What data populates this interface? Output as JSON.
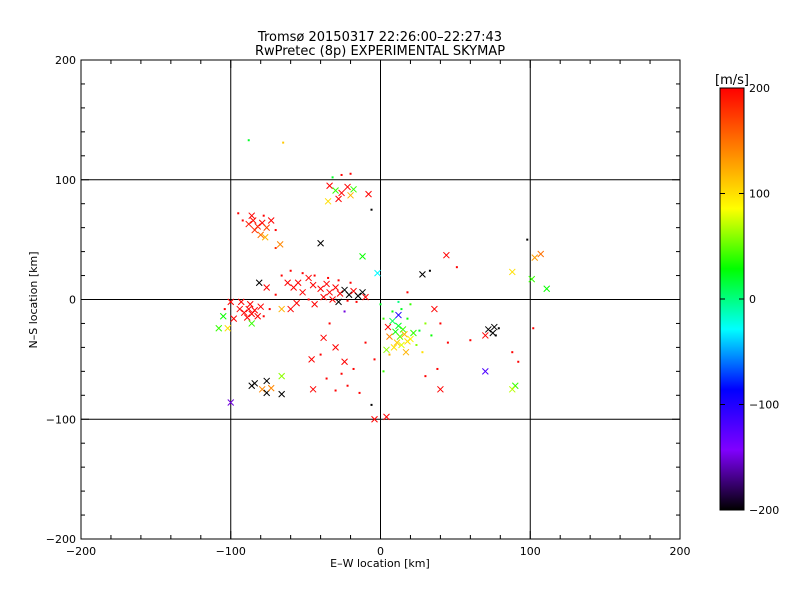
{
  "chart_data": {
    "type": "scatter",
    "title": "Tromsø 20150317 22:26:00–22:27:43",
    "subtitle": "RwPretec (8p) EXPERIMENTAL SKYMAP",
    "xlabel": "E–W location [km]",
    "ylabel": "N–S location [km]",
    "xlim": [
      -200,
      200
    ],
    "ylim": [
      -200,
      200
    ],
    "xticks": [
      -200,
      -100,
      0,
      100,
      200
    ],
    "yticks": [
      -200,
      -100,
      0,
      100,
      200
    ],
    "x_tick_labels": [
      "−200",
      "−100",
      "0",
      "100",
      "200"
    ],
    "y_tick_labels": [
      "−200",
      "−100",
      "0",
      "100",
      "200"
    ],
    "grid_lines": [
      -100,
      0,
      100
    ],
    "colorbar": {
      "label": "[m/s]",
      "range": [
        -200,
        200
      ],
      "ticks": [
        200,
        100,
        0,
        -100,
        -200
      ],
      "tick_labels": [
        "200",
        "100",
        "0",
        "−100",
        "−200"
      ],
      "colors": [
        "#ff0000",
        "#ff8000",
        "#ffff00",
        "#00ff00",
        "#00ffff",
        "#0000ff",
        "#8000ff",
        "#000000"
      ]
    },
    "points": [
      {
        "x": -88,
        "y": 63,
        "v": 190,
        "m": "x"
      },
      {
        "x": -85,
        "y": 66,
        "v": 195,
        "m": "x"
      },
      {
        "x": -82,
        "y": 61,
        "v": 185,
        "m": "x"
      },
      {
        "x": -79,
        "y": 64,
        "v": 200,
        "m": "x"
      },
      {
        "x": -84,
        "y": 58,
        "v": 180,
        "m": "x"
      },
      {
        "x": -76,
        "y": 60,
        "v": 170,
        "m": "x"
      },
      {
        "x": -86,
        "y": 70,
        "v": 200,
        "m": "x"
      },
      {
        "x": -80,
        "y": 54,
        "v": 150,
        "m": "x"
      },
      {
        "x": -73,
        "y": 66,
        "v": 200,
        "m": "x"
      },
      {
        "x": -77,
        "y": 52,
        "v": 120,
        "m": "x"
      },
      {
        "x": -67,
        "y": 46,
        "v": 140,
        "m": "x"
      },
      {
        "x": -92,
        "y": 66,
        "v": 200,
        "m": "."
      },
      {
        "x": -95,
        "y": 72,
        "v": 200,
        "m": "."
      },
      {
        "x": -78,
        "y": 70,
        "v": 200,
        "m": "."
      },
      {
        "x": -70,
        "y": 58,
        "v": 200,
        "m": "."
      },
      {
        "x": -40,
        "y": 47,
        "v": -200,
        "m": "x"
      },
      {
        "x": -70,
        "y": 43,
        "v": 180,
        "m": "."
      },
      {
        "x": -88,
        "y": 133,
        "v": 20,
        "m": "."
      },
      {
        "x": -65,
        "y": 131,
        "v": 110,
        "m": "."
      },
      {
        "x": -32,
        "y": 102,
        "v": 20,
        "m": "."
      },
      {
        "x": -26,
        "y": 104,
        "v": 200,
        "m": "."
      },
      {
        "x": -20,
        "y": 105,
        "v": 200,
        "m": "."
      },
      {
        "x": -34,
        "y": 95,
        "v": 200,
        "m": "x"
      },
      {
        "x": -30,
        "y": 91,
        "v": 40,
        "m": "x"
      },
      {
        "x": -26,
        "y": 89,
        "v": 200,
        "m": "x"
      },
      {
        "x": -22,
        "y": 94,
        "v": 200,
        "m": "x"
      },
      {
        "x": -18,
        "y": 92,
        "v": 40,
        "m": "x"
      },
      {
        "x": -20,
        "y": 87,
        "v": 120,
        "m": "x"
      },
      {
        "x": -35,
        "y": 82,
        "v": 100,
        "m": "x"
      },
      {
        "x": -28,
        "y": 84,
        "v": 200,
        "m": "x"
      },
      {
        "x": -8,
        "y": 88,
        "v": 200,
        "m": "x"
      },
      {
        "x": -6,
        "y": 75,
        "v": -200,
        "m": "."
      },
      {
        "x": -12,
        "y": 36,
        "v": 30,
        "m": "x"
      },
      {
        "x": -2,
        "y": 22,
        "v": -30,
        "m": "x"
      },
      {
        "x": -48,
        "y": 18,
        "v": 200,
        "m": "x"
      },
      {
        "x": -55,
        "y": 14,
        "v": 200,
        "m": "x"
      },
      {
        "x": -58,
        "y": 10,
        "v": 200,
        "m": "x"
      },
      {
        "x": -62,
        "y": 14,
        "v": 200,
        "m": "x"
      },
      {
        "x": -52,
        "y": 6,
        "v": 200,
        "m": "x"
      },
      {
        "x": -45,
        "y": 12,
        "v": 200,
        "m": "x"
      },
      {
        "x": -40,
        "y": 9,
        "v": 200,
        "m": "x"
      },
      {
        "x": -36,
        "y": 13,
        "v": 200,
        "m": "x"
      },
      {
        "x": -34,
        "y": 6,
        "v": 200,
        "m": "x"
      },
      {
        "x": -30,
        "y": 10,
        "v": 200,
        "m": "x"
      },
      {
        "x": -27,
        "y": 5,
        "v": 200,
        "m": "x"
      },
      {
        "x": -24,
        "y": 8,
        "v": -200,
        "m": "x"
      },
      {
        "x": -21,
        "y": 4,
        "v": -200,
        "m": "x"
      },
      {
        "x": -18,
        "y": 7,
        "v": 200,
        "m": "x"
      },
      {
        "x": -15,
        "y": 3,
        "v": -200,
        "m": "x"
      },
      {
        "x": -12,
        "y": 6,
        "v": -200,
        "m": "x"
      },
      {
        "x": -10,
        "y": 2,
        "v": 200,
        "m": "x"
      },
      {
        "x": -38,
        "y": 2,
        "v": 200,
        "m": "x"
      },
      {
        "x": -32,
        "y": 0,
        "v": 200,
        "m": "x"
      },
      {
        "x": -44,
        "y": -4,
        "v": 200,
        "m": "x"
      },
      {
        "x": -56,
        "y": -3,
        "v": 200,
        "m": "x"
      },
      {
        "x": -60,
        "y": -8,
        "v": 200,
        "m": "x"
      },
      {
        "x": -66,
        "y": -8,
        "v": 120,
        "m": "x"
      },
      {
        "x": -28,
        "y": -2,
        "v": -200,
        "m": "x"
      },
      {
        "x": -66,
        "y": 20,
        "v": 200,
        "m": "."
      },
      {
        "x": -60,
        "y": 24,
        "v": 200,
        "m": "."
      },
      {
        "x": -52,
        "y": 22,
        "v": 200,
        "m": "."
      },
      {
        "x": -44,
        "y": 20,
        "v": 200,
        "m": "."
      },
      {
        "x": -35,
        "y": 18,
        "v": 200,
        "m": "."
      },
      {
        "x": -28,
        "y": 16,
        "v": 200,
        "m": "."
      },
      {
        "x": -20,
        "y": 14,
        "v": 200,
        "m": "."
      },
      {
        "x": -70,
        "y": 4,
        "v": 200,
        "m": "."
      },
      {
        "x": -48,
        "y": 0,
        "v": 200,
        "m": "."
      },
      {
        "x": -22,
        "y": -1,
        "v": 200,
        "m": "."
      },
      {
        "x": -16,
        "y": -2,
        "v": 200,
        "m": "."
      },
      {
        "x": -88,
        "y": -8,
        "v": 200,
        "m": "x"
      },
      {
        "x": -86,
        "y": -12,
        "v": 200,
        "m": "x"
      },
      {
        "x": -84,
        "y": -9,
        "v": 200,
        "m": "x"
      },
      {
        "x": -91,
        "y": -11,
        "v": 200,
        "m": "x"
      },
      {
        "x": -82,
        "y": -14,
        "v": 200,
        "m": "x"
      },
      {
        "x": -94,
        "y": -8,
        "v": 200,
        "m": "x"
      },
      {
        "x": -89,
        "y": -15,
        "v": 200,
        "m": "x"
      },
      {
        "x": -80,
        "y": -6,
        "v": 200,
        "m": "x"
      },
      {
        "x": -87,
        "y": -4,
        "v": 200,
        "m": "x"
      },
      {
        "x": -93,
        "y": -2,
        "v": 200,
        "m": "x"
      },
      {
        "x": -100,
        "y": -2,
        "v": 200,
        "m": "x"
      },
      {
        "x": -108,
        "y": -24,
        "v": 40,
        "m": "x"
      },
      {
        "x": -102,
        "y": -24,
        "v": 100,
        "m": "x"
      },
      {
        "x": -98,
        "y": -16,
        "v": 200,
        "m": "x"
      },
      {
        "x": -105,
        "y": -14,
        "v": 30,
        "m": "x"
      },
      {
        "x": -86,
        "y": -20,
        "v": 40,
        "m": "x"
      },
      {
        "x": -74,
        "y": -8,
        "v": 200,
        "m": "."
      },
      {
        "x": -78,
        "y": -14,
        "v": 200,
        "m": "."
      },
      {
        "x": -104,
        "y": -8,
        "v": 200,
        "m": "."
      },
      {
        "x": -81,
        "y": 14,
        "v": -200,
        "m": "x"
      },
      {
        "x": -76,
        "y": 10,
        "v": 200,
        "m": "x"
      },
      {
        "x": -100,
        "y": -86,
        "v": -150,
        "m": "x"
      },
      {
        "x": -86,
        "y": -72,
        "v": -200,
        "m": "x"
      },
      {
        "x": -84,
        "y": -70,
        "v": -200,
        "m": "x"
      },
      {
        "x": -79,
        "y": -75,
        "v": 140,
        "m": "x"
      },
      {
        "x": -76,
        "y": -78,
        "v": -200,
        "m": "x"
      },
      {
        "x": -73,
        "y": -74,
        "v": 140,
        "m": "x"
      },
      {
        "x": -76,
        "y": -68,
        "v": -200,
        "m": "x"
      },
      {
        "x": -66,
        "y": -79,
        "v": -200,
        "m": "x"
      },
      {
        "x": -66,
        "y": -64,
        "v": 60,
        "m": "x"
      },
      {
        "x": -45,
        "y": -75,
        "v": 200,
        "m": "x"
      },
      {
        "x": -46,
        "y": -50,
        "v": 200,
        "m": "x"
      },
      {
        "x": -38,
        "y": -32,
        "v": 200,
        "m": "x"
      },
      {
        "x": -30,
        "y": -40,
        "v": 200,
        "m": "x"
      },
      {
        "x": -24,
        "y": -52,
        "v": 200,
        "m": "x"
      },
      {
        "x": -36,
        "y": -66,
        "v": 200,
        "m": "."
      },
      {
        "x": -26,
        "y": -62,
        "v": 200,
        "m": "."
      },
      {
        "x": -18,
        "y": -58,
        "v": 200,
        "m": "."
      },
      {
        "x": -22,
        "y": -72,
        "v": 200,
        "m": "."
      },
      {
        "x": -14,
        "y": -78,
        "v": 200,
        "m": "."
      },
      {
        "x": -30,
        "y": -76,
        "v": 200,
        "m": "."
      },
      {
        "x": -40,
        "y": -46,
        "v": 200,
        "m": "."
      },
      {
        "x": -34,
        "y": -20,
        "v": 200,
        "m": "."
      },
      {
        "x": -10,
        "y": -36,
        "v": 200,
        "m": "."
      },
      {
        "x": -24,
        "y": -10,
        "v": -150,
        "m": "."
      },
      {
        "x": -4,
        "y": -100,
        "v": 200,
        "m": "x"
      },
      {
        "x": 4,
        "y": -98,
        "v": 200,
        "m": "x"
      },
      {
        "x": -6,
        "y": -88,
        "v": -200,
        "m": "."
      },
      {
        "x": 8,
        "y": -18,
        "v": 10,
        "m": "x"
      },
      {
        "x": 12,
        "y": -22,
        "v": 20,
        "m": "x"
      },
      {
        "x": 15,
        "y": -25,
        "v": 40,
        "m": "x"
      },
      {
        "x": 10,
        "y": -27,
        "v": 30,
        "m": "x"
      },
      {
        "x": 13,
        "y": -31,
        "v": 50,
        "m": "x"
      },
      {
        "x": 16,
        "y": -29,
        "v": 120,
        "m": "x"
      },
      {
        "x": 18,
        "y": -35,
        "v": 100,
        "m": "x"
      },
      {
        "x": 11,
        "y": -36,
        "v": 110,
        "m": "x"
      },
      {
        "x": 14,
        "y": -38,
        "v": 80,
        "m": "x"
      },
      {
        "x": 9,
        "y": -40,
        "v": 100,
        "m": "x"
      },
      {
        "x": 20,
        "y": -33,
        "v": 90,
        "m": "x"
      },
      {
        "x": 6,
        "y": -31,
        "v": 140,
        "m": "x"
      },
      {
        "x": 22,
        "y": -28,
        "v": 40,
        "m": "x"
      },
      {
        "x": 12,
        "y": -13,
        "v": -100,
        "m": "x"
      },
      {
        "x": 5,
        "y": -23,
        "v": 200,
        "m": "x"
      },
      {
        "x": 4,
        "y": -42,
        "v": 60,
        "m": "x"
      },
      {
        "x": 17,
        "y": -44,
        "v": 120,
        "m": "x"
      },
      {
        "x": 24,
        "y": -38,
        "v": 60,
        "m": "."
      },
      {
        "x": 18,
        "y": -16,
        "v": 30,
        "m": "."
      },
      {
        "x": 26,
        "y": -26,
        "v": 20,
        "m": "."
      },
      {
        "x": 8,
        "y": -10,
        "v": 30,
        "m": "."
      },
      {
        "x": 14,
        "y": -8,
        "v": 20,
        "m": "."
      },
      {
        "x": 2,
        "y": -16,
        "v": 40,
        "m": "."
      },
      {
        "x": 28,
        "y": -44,
        "v": 100,
        "m": "."
      },
      {
        "x": 6,
        "y": -46,
        "v": 120,
        "m": "."
      },
      {
        "x": 0,
        "y": -4,
        "v": 20,
        "m": "."
      },
      {
        "x": 12,
        "y": -2,
        "v": 0,
        "m": "."
      },
      {
        "x": 20,
        "y": -4,
        "v": 40,
        "m": "."
      },
      {
        "x": 30,
        "y": -20,
        "v": 60,
        "m": "."
      },
      {
        "x": 34,
        "y": -30,
        "v": 30,
        "m": "."
      },
      {
        "x": 40,
        "y": -20,
        "v": 200,
        "m": "."
      },
      {
        "x": -4,
        "y": -50,
        "v": 200,
        "m": "."
      },
      {
        "x": 2,
        "y": -60,
        "v": 40,
        "m": "."
      },
      {
        "x": 30,
        "y": -64,
        "v": 200,
        "m": "."
      },
      {
        "x": 38,
        "y": -58,
        "v": 200,
        "m": "."
      },
      {
        "x": 45,
        "y": -36,
        "v": 200,
        "m": "."
      },
      {
        "x": 28,
        "y": 21,
        "v": -200,
        "m": "x"
      },
      {
        "x": 33,
        "y": 24,
        "v": -200,
        "m": "."
      },
      {
        "x": 44,
        "y": 37,
        "v": 200,
        "m": "x"
      },
      {
        "x": 51,
        "y": 27,
        "v": 200,
        "m": "."
      },
      {
        "x": 18,
        "y": 6,
        "v": 200,
        "m": "."
      },
      {
        "x": 36,
        "y": -8,
        "v": 200,
        "m": "x"
      },
      {
        "x": 40,
        "y": -75,
        "v": 200,
        "m": "x"
      },
      {
        "x": 70,
        "y": -60,
        "v": -120,
        "m": "x"
      },
      {
        "x": 72,
        "y": -25,
        "v": -200,
        "m": "x"
      },
      {
        "x": 76,
        "y": -23,
        "v": -200,
        "m": "x"
      },
      {
        "x": 75,
        "y": -28,
        "v": -200,
        "m": "x"
      },
      {
        "x": 77,
        "y": -30,
        "v": -200,
        "m": "."
      },
      {
        "x": 79,
        "y": -24,
        "v": -200,
        "m": "."
      },
      {
        "x": 70,
        "y": -30,
        "v": 200,
        "m": "x"
      },
      {
        "x": 60,
        "y": -34,
        "v": 200,
        "m": "."
      },
      {
        "x": 90,
        "y": -72,
        "v": 40,
        "m": "x"
      },
      {
        "x": 88,
        "y": -75,
        "v": 70,
        "m": "x"
      },
      {
        "x": 88,
        "y": -44,
        "v": 200,
        "m": "."
      },
      {
        "x": 92,
        "y": -52,
        "v": 200,
        "m": "."
      },
      {
        "x": 102,
        "y": -24,
        "v": 200,
        "m": "."
      },
      {
        "x": 88,
        "y": 23,
        "v": 100,
        "m": "x"
      },
      {
        "x": 103,
        "y": 35,
        "v": 130,
        "m": "x"
      },
      {
        "x": 107,
        "y": 38,
        "v": 150,
        "m": "x"
      },
      {
        "x": 101,
        "y": 17,
        "v": 40,
        "m": "x"
      },
      {
        "x": 111,
        "y": 9,
        "v": 30,
        "m": "x"
      },
      {
        "x": 98,
        "y": 50,
        "v": -200,
        "m": "."
      }
    ]
  }
}
